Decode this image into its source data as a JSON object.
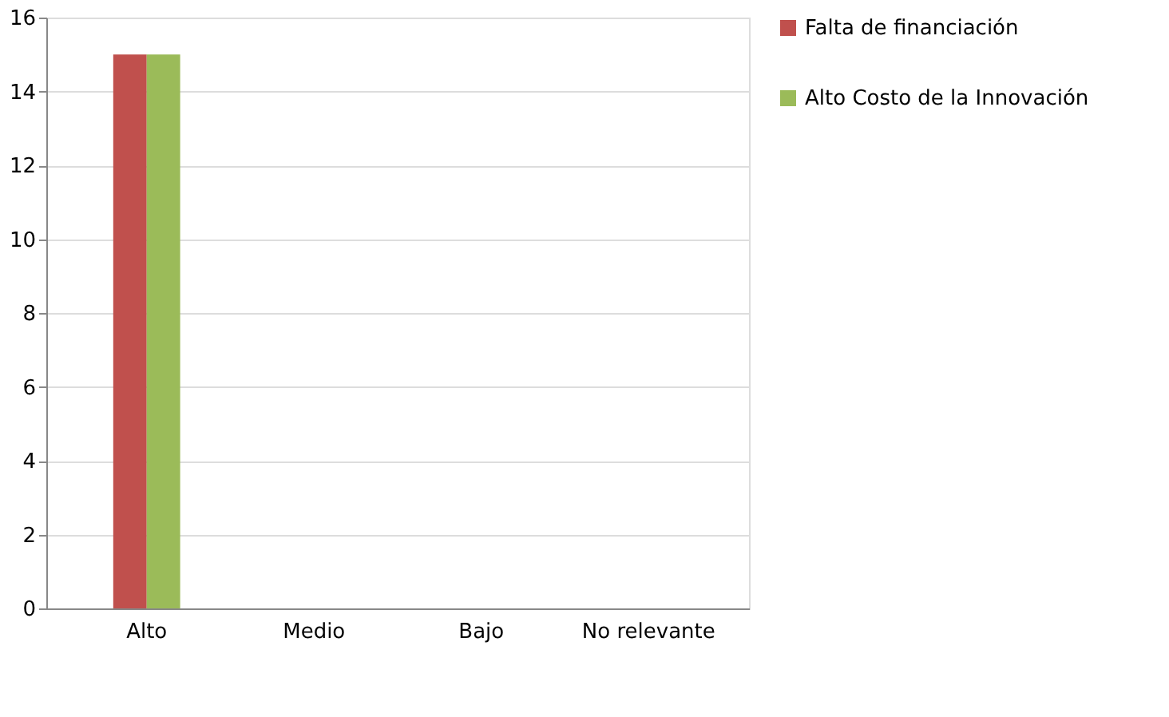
{
  "chart_data": {
    "type": "bar",
    "categories": [
      "Alto",
      "Medio",
      "Bajo",
      "No relevante"
    ],
    "series": [
      {
        "name": "Falta de financiación",
        "color": "#c0504d",
        "values": [
          15,
          0,
          0,
          0
        ]
      },
      {
        "name": "Alto Costo de la Innovación",
        "color": "#9bbb59",
        "values": [
          15,
          0,
          0,
          0
        ]
      }
    ],
    "ylim": [
      0,
      16
    ],
    "yticks": [
      0,
      2,
      4,
      6,
      8,
      10,
      12,
      14,
      16
    ],
    "grid": "y",
    "legend": "right"
  }
}
